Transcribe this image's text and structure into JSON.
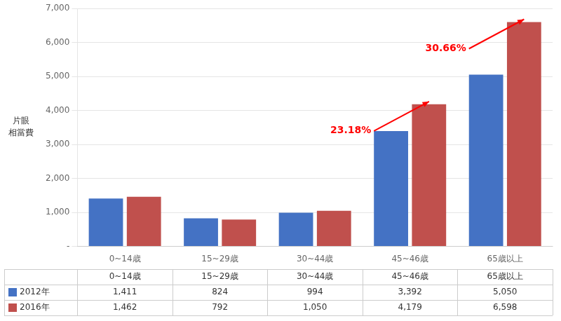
{
  "chart_data": {
    "type": "bar",
    "ylabel": "片眼\n相當費",
    "categories": [
      "0~14歳",
      "15~29歳",
      "30~44歳",
      "45~46歳",
      "65歳以上"
    ],
    "series": [
      {
        "name": "2012年",
        "color": "#4472C4",
        "values": [
          1411,
          824,
          994,
          3392,
          5050
        ],
        "value_labels": [
          "1,411",
          "824",
          "994",
          "3,392",
          "5,050"
        ]
      },
      {
        "name": "2016年",
        "color": "#C0504D",
        "values": [
          1462,
          792,
          1050,
          4179,
          6598
        ],
        "value_labels": [
          "1,462",
          "792",
          "1,050",
          "4,179",
          "6,598"
        ]
      }
    ],
    "ylim": [
      0,
      7000
    ],
    "yticks": [
      {
        "value": 0,
        "label": "-"
      },
      {
        "value": 1000,
        "label": "1,000"
      },
      {
        "value": 2000,
        "label": "2,000"
      },
      {
        "value": 3000,
        "label": "3,000"
      },
      {
        "value": 4000,
        "label": "4,000"
      },
      {
        "value": 5000,
        "label": "5,000"
      },
      {
        "value": 6000,
        "label": "6,000"
      },
      {
        "value": 7000,
        "label": "7,000"
      }
    ],
    "grid": true,
    "annotations": [
      {
        "text": "23.18%",
        "category": "45~46歳",
        "color": "#FF0000"
      },
      {
        "text": "30.66%",
        "category": "65歳以上",
        "color": "#FF0000"
      }
    ]
  }
}
